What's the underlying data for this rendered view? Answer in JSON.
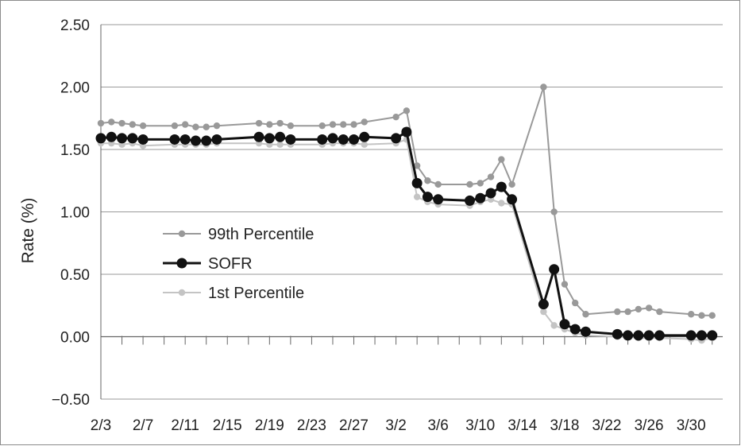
{
  "chart_data": {
    "type": "line",
    "title": "",
    "xlabel": "",
    "ylabel": "Rate (%)",
    "ylim": [
      -0.5,
      2.5
    ],
    "yticks": [
      2.5,
      2.0,
      1.5,
      1.0,
      0.5,
      0.0,
      -0.5
    ],
    "ytick_labels": [
      "2.50",
      "2.00",
      "1.50",
      "1.00",
      "0.50",
      "0.00",
      "−0.50"
    ],
    "xlim": [
      0,
      59
    ],
    "xtick_positions": [
      0,
      4,
      8,
      12,
      16,
      20,
      24,
      28,
      32,
      36,
      40,
      44,
      48,
      52,
      56
    ],
    "xtick_labels": [
      "2/3",
      "2/7",
      "2/11",
      "2/15",
      "2/19",
      "2/23",
      "2/27",
      "3/2",
      "3/6",
      "3/10",
      "3/14",
      "3/18",
      "3/22",
      "3/26",
      "3/30"
    ],
    "grid": "horizontal",
    "legend_position": "center-left",
    "colors": {
      "p99": "#999999",
      "sofr": "#111111",
      "p1": "#c4c4c4"
    },
    "series": [
      {
        "name": "99th Percentile",
        "key": "p99",
        "points": [
          [
            0,
            1.71
          ],
          [
            1,
            1.72
          ],
          [
            2,
            1.71
          ],
          [
            3,
            1.7
          ],
          [
            4,
            1.69
          ],
          [
            7,
            1.69
          ],
          [
            8,
            1.7
          ],
          [
            9,
            1.68
          ],
          [
            10,
            1.68
          ],
          [
            11,
            1.69
          ],
          [
            15,
            1.71
          ],
          [
            16,
            1.7
          ],
          [
            17,
            1.71
          ],
          [
            18,
            1.69
          ],
          [
            21,
            1.69
          ],
          [
            22,
            1.7
          ],
          [
            23,
            1.7
          ],
          [
            24,
            1.7
          ],
          [
            25,
            1.72
          ],
          [
            28,
            1.76
          ],
          [
            29,
            1.81
          ],
          [
            30,
            1.37
          ],
          [
            31,
            1.25
          ],
          [
            32,
            1.22
          ],
          [
            35,
            1.22
          ],
          [
            36,
            1.23
          ],
          [
            37,
            1.28
          ],
          [
            38,
            1.42
          ],
          [
            39,
            1.22
          ],
          [
            42,
            2.0
          ],
          [
            43,
            1.0
          ],
          [
            44,
            0.42
          ],
          [
            45,
            0.27
          ],
          [
            46,
            0.18
          ],
          [
            49,
            0.2
          ],
          [
            50,
            0.2
          ],
          [
            51,
            0.22
          ],
          [
            52,
            0.23
          ],
          [
            53,
            0.2
          ],
          [
            56,
            0.18
          ],
          [
            57,
            0.17
          ],
          [
            58,
            0.17
          ]
        ]
      },
      {
        "name": "SOFR",
        "key": "sofr",
        "points": [
          [
            0,
            1.59
          ],
          [
            1,
            1.6
          ],
          [
            2,
            1.59
          ],
          [
            3,
            1.59
          ],
          [
            4,
            1.58
          ],
          [
            7,
            1.58
          ],
          [
            8,
            1.58
          ],
          [
            9,
            1.57
          ],
          [
            10,
            1.57
          ],
          [
            11,
            1.58
          ],
          [
            15,
            1.6
          ],
          [
            16,
            1.59
          ],
          [
            17,
            1.6
          ],
          [
            18,
            1.58
          ],
          [
            21,
            1.58
          ],
          [
            22,
            1.59
          ],
          [
            23,
            1.58
          ],
          [
            24,
            1.58
          ],
          [
            25,
            1.6
          ],
          [
            28,
            1.59
          ],
          [
            29,
            1.64
          ],
          [
            30,
            1.23
          ],
          [
            31,
            1.12
          ],
          [
            32,
            1.1
          ],
          [
            35,
            1.09
          ],
          [
            36,
            1.11
          ],
          [
            37,
            1.15
          ],
          [
            38,
            1.2
          ],
          [
            39,
            1.1
          ],
          [
            42,
            0.26
          ],
          [
            43,
            0.54
          ],
          [
            44,
            0.1
          ],
          [
            45,
            0.06
          ],
          [
            46,
            0.04
          ],
          [
            49,
            0.02
          ],
          [
            50,
            0.01
          ],
          [
            51,
            0.01
          ],
          [
            52,
            0.01
          ],
          [
            53,
            0.01
          ],
          [
            56,
            0.01
          ],
          [
            57,
            0.01
          ],
          [
            58,
            0.01
          ]
        ]
      },
      {
        "name": "1st Percentile",
        "key": "p1",
        "points": [
          [
            0,
            1.55
          ],
          [
            1,
            1.55
          ],
          [
            2,
            1.54
          ],
          [
            3,
            1.55
          ],
          [
            4,
            1.53
          ],
          [
            7,
            1.54
          ],
          [
            8,
            1.54
          ],
          [
            9,
            1.54
          ],
          [
            10,
            1.54
          ],
          [
            11,
            1.55
          ],
          [
            15,
            1.55
          ],
          [
            16,
            1.54
          ],
          [
            17,
            1.54
          ],
          [
            18,
            1.54
          ],
          [
            21,
            1.54
          ],
          [
            22,
            1.55
          ],
          [
            23,
            1.55
          ],
          [
            24,
            1.55
          ],
          [
            25,
            1.54
          ],
          [
            28,
            1.55
          ],
          [
            29,
            1.58
          ],
          [
            30,
            1.12
          ],
          [
            31,
            1.08
          ],
          [
            32,
            1.06
          ],
          [
            35,
            1.05
          ],
          [
            36,
            1.08
          ],
          [
            37,
            1.1
          ],
          [
            38,
            1.07
          ],
          [
            39,
            1.06
          ],
          [
            42,
            0.2
          ],
          [
            43,
            0.09
          ],
          [
            44,
            0.06
          ],
          [
            45,
            0.03
          ],
          [
            46,
            0.01
          ],
          [
            49,
            0.0
          ],
          [
            50,
            0.0
          ],
          [
            51,
            -0.01
          ],
          [
            52,
            -0.01
          ],
          [
            53,
            -0.01
          ],
          [
            56,
            -0.02
          ],
          [
            57,
            -0.03
          ],
          [
            58,
            -0.01
          ]
        ]
      }
    ],
    "legend": [
      {
        "label": "99th Percentile",
        "key": "p99"
      },
      {
        "label": "SOFR",
        "key": "sofr"
      },
      {
        "label": "1st Percentile",
        "key": "p1"
      }
    ]
  }
}
